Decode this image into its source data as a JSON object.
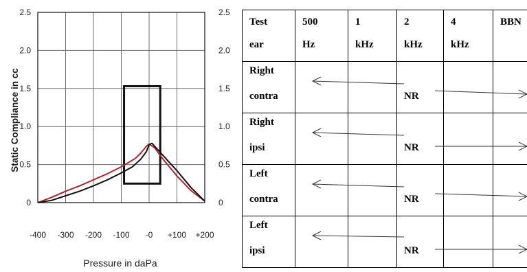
{
  "chart_data": {
    "type": "line",
    "xlabel": "Pressure in daPa",
    "ylabel": "Static Compliance in cc",
    "xlim": [
      -400,
      200
    ],
    "ylim": [
      0,
      2.5
    ],
    "xticks": [
      "-400",
      "-300",
      "-200",
      "-100",
      "-0",
      "+100",
      "+200"
    ],
    "yticks_left": [
      "2.5",
      "2.0",
      "1.5",
      "1.0",
      "0.5",
      "0"
    ],
    "yticks_right": [
      "2.5",
      "2.0",
      "1.5",
      "1.0",
      "0.5",
      "0"
    ],
    "grid": true,
    "normal_box": {
      "x": [
        -90,
        40
      ],
      "y": [
        0.25,
        1.53
      ]
    },
    "series": [
      {
        "color": "#b0242a",
        "x": [
          -400,
          -350,
          -300,
          -250,
          -200,
          -150,
          -100,
          -50,
          -30,
          -10,
          0,
          20,
          50,
          100,
          150,
          200
        ],
        "y": [
          0.0,
          0.07,
          0.15,
          0.22,
          0.3,
          0.38,
          0.47,
          0.58,
          0.65,
          0.74,
          0.77,
          0.72,
          0.57,
          0.35,
          0.16,
          0.02
        ]
      },
      {
        "color": "#111111",
        "x": [
          -400,
          -350,
          -300,
          -250,
          -200,
          -150,
          -100,
          -60,
          -30,
          -10,
          0,
          10,
          20,
          50,
          100,
          150,
          200
        ],
        "y": [
          0.0,
          0.03,
          0.09,
          0.15,
          0.22,
          0.3,
          0.39,
          0.47,
          0.57,
          0.67,
          0.76,
          0.78,
          0.74,
          0.62,
          0.42,
          0.2,
          0.02
        ]
      }
    ]
  },
  "reflex_table": {
    "header": [
      [
        "Test",
        "ear"
      ],
      [
        "500",
        "Hz"
      ],
      [
        "1",
        "kHz"
      ],
      [
        "2",
        "kHz"
      ],
      [
        "4",
        "kHz"
      ],
      [
        "BBN",
        ""
      ]
    ],
    "rows": [
      {
        "ear": [
          "Right",
          "contra"
        ],
        "result": "NR"
      },
      {
        "ear": [
          "Right",
          "ipsi"
        ],
        "result": "NR"
      },
      {
        "ear": [
          "Left",
          "contra"
        ],
        "result": "NR"
      },
      {
        "ear": [
          "Left",
          "ipsi"
        ],
        "result": "NR"
      }
    ]
  }
}
